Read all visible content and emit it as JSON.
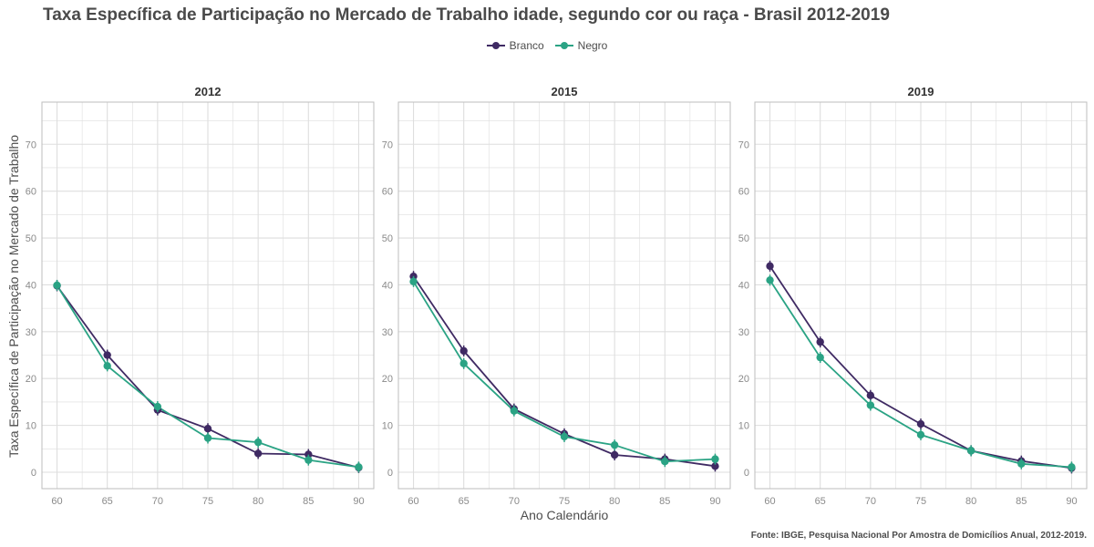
{
  "title": "Taxa Específica de Participação no Mercado de Trabalho idade, segundo cor ou raça - Brasil 2012-2019",
  "source": "Fonte: IBGE, Pesquisa Nacional Por Amostra de Domicílios Anual, 2012-2019.",
  "colors": {
    "Branco": "#3f2a63",
    "Negro": "#2aa384",
    "grid": "#dedede",
    "border": "#bdbdbd"
  },
  "chart_data": {
    "type": "line",
    "xlabel": "Ano Calendário",
    "ylabel": "Taxa Específica de Participação no Mercado de Trabalho",
    "x": [
      60,
      65,
      70,
      75,
      80,
      85,
      90
    ],
    "xlim": [
      58.5,
      91.5
    ],
    "ylim": [
      -3.5,
      79
    ],
    "yticks": [
      0,
      10,
      20,
      30,
      40,
      50,
      60,
      70
    ],
    "grid": true,
    "legend_position": "top",
    "legend": [
      "Branco",
      "Negro"
    ],
    "panels": [
      {
        "title": "2012",
        "series": [
          {
            "name": "Branco",
            "values": [
              39.8,
              25.0,
              13.3,
              9.3,
              4.0,
              3.8,
              1.0
            ]
          },
          {
            "name": "Negro",
            "values": [
              39.9,
              22.7,
              14.0,
              7.3,
              6.4,
              2.6,
              1.1
            ]
          }
        ]
      },
      {
        "title": "2015",
        "series": [
          {
            "name": "Branco",
            "values": [
              41.8,
              25.9,
              13.5,
              8.2,
              3.7,
              2.8,
              1.3
            ]
          },
          {
            "name": "Negro",
            "values": [
              40.7,
              23.2,
              13.1,
              7.6,
              5.8,
              2.3,
              2.8
            ]
          }
        ]
      },
      {
        "title": "2019",
        "series": [
          {
            "name": "Branco",
            "values": [
              44.0,
              27.8,
              16.4,
              10.3,
              4.6,
              2.4,
              0.9
            ]
          },
          {
            "name": "Negro",
            "values": [
              41.0,
              24.5,
              14.3,
              8.0,
              4.6,
              1.8,
              1.1
            ]
          }
        ]
      }
    ]
  }
}
